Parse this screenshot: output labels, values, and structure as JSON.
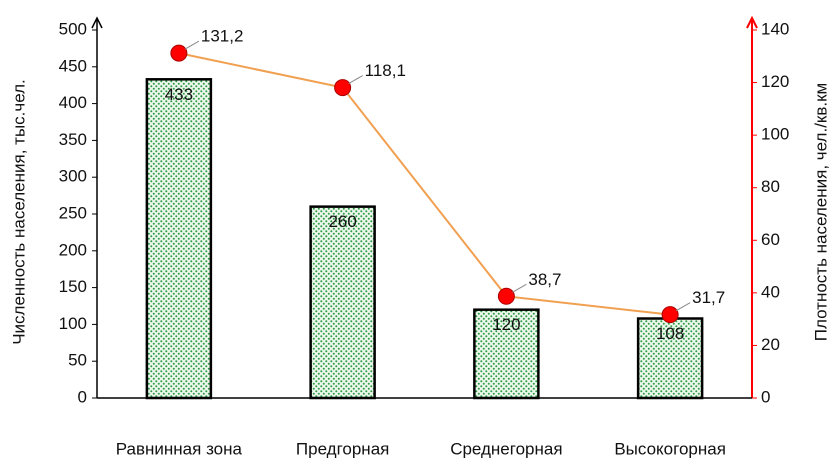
{
  "chart_data": {
    "type": "bar",
    "ylabel": "Численность населения, тыс.чел.",
    "y2label": "Плотность населения, чел./кв.км",
    "categories": [
      "Равнинная зона",
      "Предгорная",
      "Среднегорная",
      "Высокогорная"
    ],
    "series": [
      {
        "type": "bar",
        "color": "#2f9a48",
        "values": [
          433,
          260,
          120,
          108
        ]
      },
      {
        "type": "line",
        "axis": "y2",
        "color": "#f0a050",
        "marker_color": "#ff0000",
        "values": [
          131.2,
          118.1,
          38.7,
          31.7
        ],
        "value_labels": [
          "131,2",
          "118,1",
          "38,7",
          "31,7"
        ]
      }
    ],
    "ylim": [
      0,
      500
    ],
    "yticks": [
      0,
      50,
      100,
      150,
      200,
      250,
      300,
      350,
      400,
      450,
      500
    ],
    "y2lim": [
      0,
      140
    ],
    "y2ticks": [
      0,
      20,
      40,
      60,
      80,
      100,
      120,
      140
    ],
    "y2_axis_color": "#ff0000",
    "grid": false
  }
}
